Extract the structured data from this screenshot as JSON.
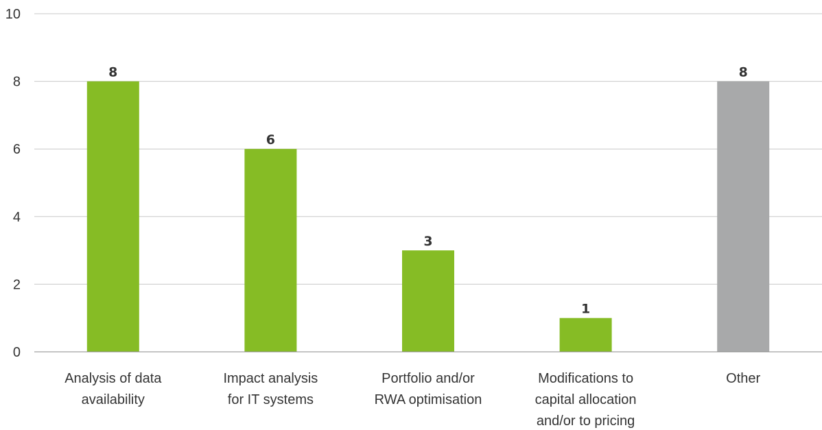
{
  "chart_data": {
    "type": "bar",
    "categories": [
      [
        "Analysis of data",
        "availability"
      ],
      [
        "Impact analysis",
        "for IT systems"
      ],
      [
        "Portfolio and/or",
        "RWA optimisation"
      ],
      [
        "Modifications to",
        "capital allocation",
        "and/or to pricing"
      ],
      [
        "Other"
      ]
    ],
    "values": [
      8,
      6,
      3,
      1,
      8
    ],
    "value_labels": [
      "8",
      "6",
      "3",
      "1",
      "8"
    ],
    "colors": [
      "#86bc25",
      "#86bc25",
      "#86bc25",
      "#86bc25",
      "#a8a9aa"
    ],
    "ylim": [
      0,
      10
    ],
    "yticks": [
      0,
      2,
      4,
      6,
      8,
      10
    ],
    "grid": true,
    "legend": "none",
    "title": "",
    "xlabel": "",
    "ylabel": ""
  }
}
